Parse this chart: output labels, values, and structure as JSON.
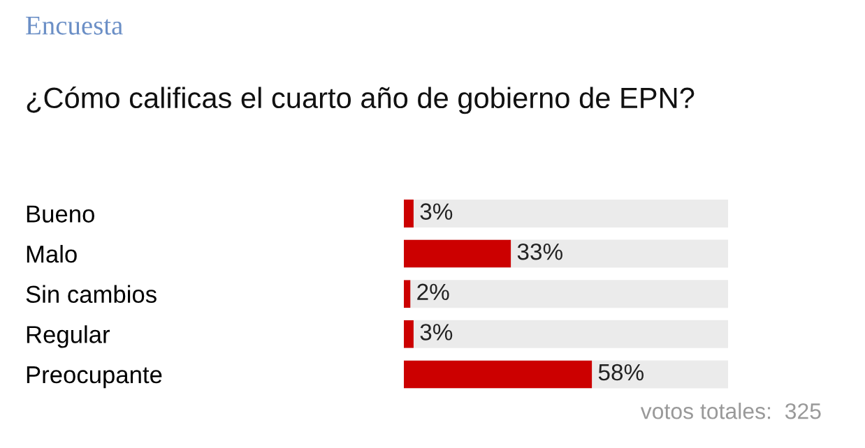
{
  "chart_data": {
    "type": "bar",
    "orientation": "horizontal",
    "title": "Encuesta",
    "subtitle": "¿Cómo calificas el cuarto año de gobierno de EPN?",
    "categories": [
      "Bueno",
      "Malo",
      "Sin cambios",
      "Regular",
      "Preocupante"
    ],
    "series": [
      {
        "color": "#cc0000",
        "values": [
          3,
          33,
          2,
          3,
          58
        ],
        "value_labels": [
          "3%",
          "33%",
          "2%",
          "3%",
          "58%"
        ]
      }
    ],
    "xlim": [
      0,
      100
    ],
    "grid": false,
    "legend": false,
    "annotations": [
      "votos totales:  325"
    ]
  }
}
